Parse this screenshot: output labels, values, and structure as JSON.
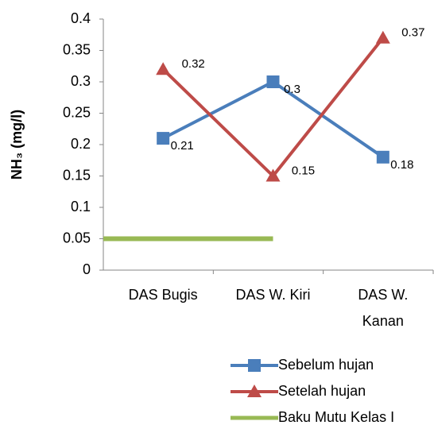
{
  "chart_data": {
    "type": "line",
    "y_label": "NH₃ (mg/l)",
    "categories": [
      "DAS Bugis",
      "DAS W. Kiri",
      "DAS W. Kanan"
    ],
    "series": [
      {
        "name": "Sebelum hujan",
        "color": "#4a7ebb",
        "marker": "square",
        "values": [
          0.21,
          0.3,
          0.18
        ]
      },
      {
        "name": "Setelah hujan",
        "color": "#be4b48",
        "marker": "triangle",
        "values": [
          0.32,
          0.15,
          0.37
        ]
      },
      {
        "name": "Baku Mutu Kelas I",
        "color": "#98b954",
        "marker": "none",
        "values": [
          0.05,
          0.05,
          null
        ]
      }
    ],
    "ylim": [
      0,
      0.4
    ],
    "yticks": [
      0,
      0.05,
      0.1,
      0.15,
      0.2,
      0.25,
      0.3,
      0.35,
      0.4
    ],
    "legend": "bottom-right"
  }
}
